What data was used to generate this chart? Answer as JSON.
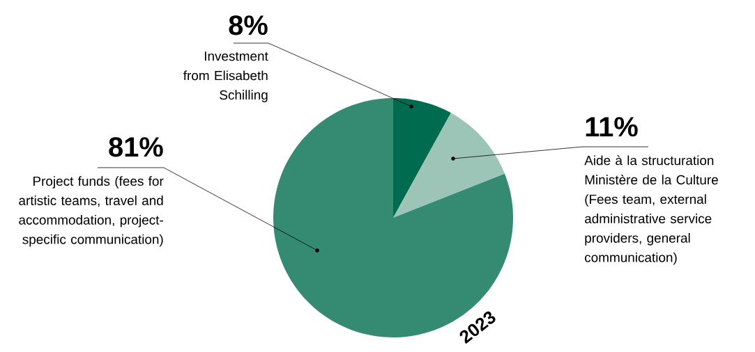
{
  "chart_data": {
    "type": "pie",
    "categories": [
      "Investment from Elisabeth Schilling",
      "Aide à la structuration Ministère de la Culture (Fees team, external administrative service providers, general communication)",
      "Project funds (fees for artistic teams, travel and accommodation, project-specific communication)"
    ],
    "values": [
      8,
      11,
      81
    ],
    "colors": [
      "#006b4f",
      "#9dc5b7",
      "#358a72"
    ],
    "value_labels": [
      "8%",
      "11%",
      "81%"
    ],
    "annotations": [
      "2023"
    ]
  }
}
